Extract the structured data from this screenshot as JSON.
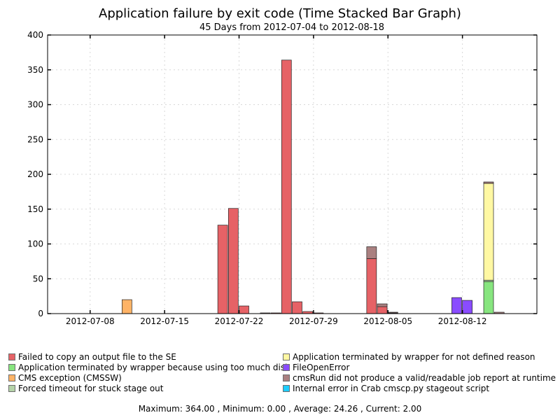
{
  "chart_data": {
    "type": "bar",
    "stacked": true,
    "title": "Application failure by exit code (Time Stacked Bar Graph)",
    "subtitle": "45 Days from 2012-07-04 to 2012-08-18",
    "xlabel": "",
    "ylabel": "",
    "ylim": [
      0,
      400
    ],
    "yticks": [
      0,
      50,
      100,
      150,
      200,
      250,
      300,
      350,
      400
    ],
    "x_date_range": [
      "2012-07-04",
      "2012-08-18"
    ],
    "xtick_labels": [
      "2012-07-08",
      "2012-07-15",
      "2012-07-22",
      "2012-07-29",
      "2012-08-05",
      "2012-08-12"
    ],
    "grid": true,
    "legend_position": "bottom",
    "series": [
      {
        "name": "Failed to copy an output file to the SE",
        "color": "#e66266",
        "data": [
          [
            "2012-07-20",
            127
          ],
          [
            "2012-07-21",
            151
          ],
          [
            "2012-07-22",
            11
          ],
          [
            "2012-07-25",
            1
          ],
          [
            "2012-07-26",
            364
          ],
          [
            "2012-07-27",
            17
          ],
          [
            "2012-07-28",
            3
          ],
          [
            "2012-07-29",
            1
          ],
          [
            "2012-08-03",
            79
          ],
          [
            "2012-08-04",
            10
          ],
          [
            "2012-08-05",
            1
          ]
        ]
      },
      {
        "name": "Application terminated by wrapper because using too much disk",
        "color": "#87e57f",
        "data": [
          [
            "2012-08-14",
            46
          ]
        ]
      },
      {
        "name": "CMS exception (CMSSW)",
        "color": "#ffb366",
        "data": [
          [
            "2012-07-11",
            20
          ]
        ]
      },
      {
        "name": "Forced timeout for stuck stage out",
        "color": "#b5d3a8",
        "data": [
          [
            "2012-08-14",
            2
          ]
        ]
      },
      {
        "name": "Application terminated by wrapper for not defined reason",
        "color": "#fff8a3",
        "data": [
          [
            "2012-08-14",
            139
          ]
        ]
      },
      {
        "name": "FileOpenError",
        "color": "#8a4cff",
        "data": [
          [
            "2012-08-11",
            23
          ],
          [
            "2012-08-12",
            19
          ]
        ]
      },
      {
        "name": "cmsRun did not produce a valid/readable job report at runtime",
        "color": "#aa8080",
        "data": [
          [
            "2012-07-24",
            1
          ],
          [
            "2012-08-03",
            17
          ],
          [
            "2012-08-04",
            4
          ],
          [
            "2012-08-05",
            1
          ],
          [
            "2012-08-14",
            2
          ],
          [
            "2012-08-15",
            2
          ]
        ]
      },
      {
        "name": "Internal error in Crab cmscp.py stageout script",
        "color": "#1ecdff",
        "data": []
      }
    ]
  },
  "footer": "Maximum: 364.00 , Minimum: 0.00 , Average: 24.26 , Current: 2.00"
}
